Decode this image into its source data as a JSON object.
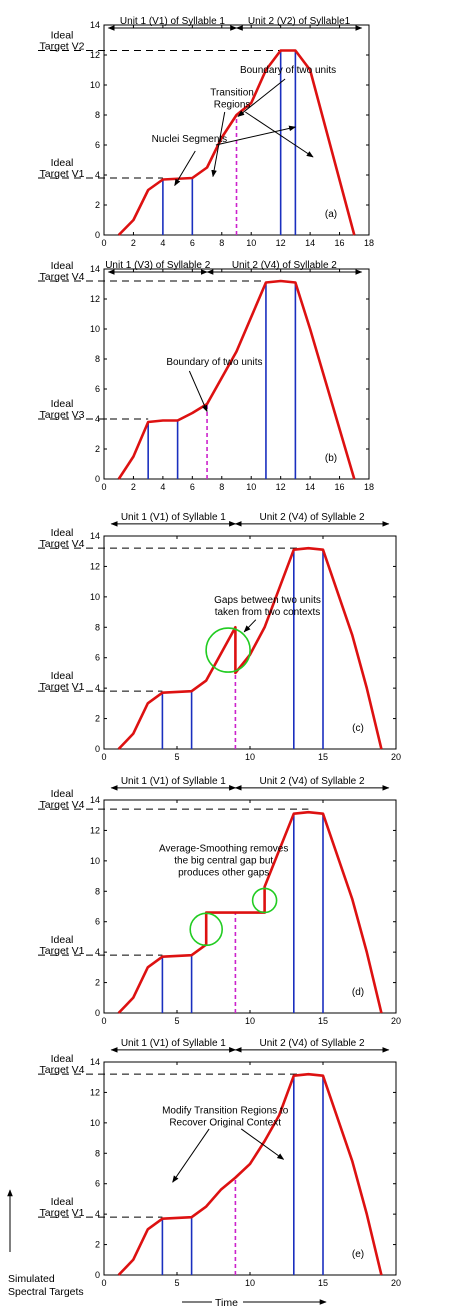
{
  "chart_data": [
    {
      "type": "line",
      "panel_label": "(a)",
      "xlim": [
        0,
        18
      ],
      "ylim": [
        0,
        14
      ],
      "xticks": [
        0,
        2,
        4,
        6,
        8,
        10,
        12,
        14,
        16,
        18
      ],
      "yticks": [
        0,
        2,
        4,
        6,
        8,
        10,
        12,
        14
      ],
      "curve": {
        "x": [
          1,
          2,
          3,
          4,
          6,
          7,
          8,
          9,
          10,
          11,
          12,
          13,
          14,
          17
        ],
        "y": [
          0,
          1,
          3,
          3.7,
          3.8,
          4.5,
          6.5,
          8,
          8.8,
          11,
          12.3,
          12.3,
          11,
          0
        ]
      },
      "boundary_x": 9,
      "boundary_top": 8,
      "nuclei": [
        [
          4,
          3.7
        ],
        [
          6,
          3.8
        ],
        [
          12,
          12.3
        ],
        [
          13,
          12.3
        ]
      ],
      "units": [
        {
          "label": "Unit 1 (V1) of Syllable 1",
          "x0": 0.3,
          "x1": 9
        },
        {
          "label": "Unit 2 (V2) of Syllable1",
          "x0": 9,
          "x1": 17.5
        }
      ],
      "units_y": 13.8,
      "targets": [
        {
          "label_top": "Ideal",
          "label_bottom": "Target V2",
          "value": 12.3,
          "x_end": 12
        },
        {
          "label_top": "Ideal",
          "label_bottom": "Target V1",
          "value": 3.8,
          "x_end": 4
        }
      ],
      "annotations": [
        {
          "lines": [
            "Boundary of two units"
          ],
          "tx": 12.5,
          "ty": 10.8,
          "arrows": [
            [
              12.3,
              10.4,
              9.1,
              7.9
            ]
          ]
        },
        {
          "lines": [
            "Transition",
            "Regions"
          ],
          "tx": 8.7,
          "ty": 9.3,
          "arrows": [
            [
              9.6,
              8.2,
              14.2,
              5.2
            ],
            [
              8.2,
              8.2,
              7.4,
              3.9
            ]
          ]
        },
        {
          "lines": [
            "Nuclei Segments"
          ],
          "tx": 5.8,
          "ty": 6.2,
          "arrows": [
            [
              6.2,
              5.6,
              4.8,
              3.3
            ],
            [
              7.6,
              6.0,
              13.0,
              7.2
            ]
          ]
        }
      ]
    },
    {
      "type": "line",
      "panel_label": "(b)",
      "xlim": [
        0,
        18
      ],
      "ylim": [
        0,
        14
      ],
      "xticks": [
        0,
        2,
        4,
        6,
        8,
        10,
        12,
        14,
        16,
        18
      ],
      "yticks": [
        0,
        2,
        4,
        6,
        8,
        10,
        12,
        14
      ],
      "curve": {
        "x": [
          1,
          2,
          3,
          4,
          5,
          6,
          7,
          9,
          10,
          11,
          12,
          13,
          14,
          17
        ],
        "y": [
          0,
          1.5,
          3.8,
          3.9,
          3.9,
          4.4,
          5,
          8.5,
          10.8,
          13.1,
          13.2,
          13.1,
          10,
          0
        ]
      },
      "boundary_x": 7,
      "boundary_top": 5,
      "nuclei": [
        [
          3,
          3.8
        ],
        [
          5,
          3.9
        ],
        [
          11,
          13.1
        ],
        [
          13,
          13.1
        ]
      ],
      "units": [
        {
          "label": "Unit 1 (V3) of Syllable 2",
          "x0": 0.3,
          "x1": 7
        },
        {
          "label": "Unit 2 (V4) of Syllable 2",
          "x0": 7,
          "x1": 17.5
        }
      ],
      "units_y": 13.8,
      "targets": [
        {
          "label_top": "Ideal",
          "label_bottom": "Target V4",
          "value": 13.2,
          "x_end": 11
        },
        {
          "label_top": "Ideal",
          "label_bottom": "Target V3",
          "value": 4,
          "x_end": 3
        }
      ],
      "annotations": [
        {
          "lines": [
            "Boundary of two units"
          ],
          "tx": 7.5,
          "ty": 7.6,
          "arrows": [
            [
              5.8,
              7.2,
              7.0,
              4.5
            ]
          ]
        }
      ]
    },
    {
      "type": "line",
      "panel_label": "(c)",
      "xlim": [
        0,
        20
      ],
      "ylim": [
        0,
        14
      ],
      "xticks": [
        0,
        5,
        10,
        15,
        20
      ],
      "yticks": [
        0,
        2,
        4,
        6,
        8,
        10,
        12,
        14
      ],
      "curve": {
        "x": [
          1,
          2,
          3,
          4,
          6,
          7,
          9,
          9,
          10,
          11,
          13,
          14,
          15,
          17,
          18,
          19
        ],
        "y": [
          0,
          1,
          3,
          3.7,
          3.8,
          4.5,
          8,
          5,
          6.2,
          8,
          13.1,
          13.2,
          13.1,
          7.5,
          4,
          0
        ]
      },
      "boundary_x": 9,
      "boundary_top": 5,
      "nuclei": [
        [
          4,
          3.7
        ],
        [
          6,
          3.8
        ],
        [
          13,
          13.1
        ],
        [
          15,
          13.1
        ]
      ],
      "units": [
        {
          "label": "Unit 1 (V1) of Syllable 1",
          "x0": 0.5,
          "x1": 9
        },
        {
          "label": "Unit 2 (V4) of Syllable 2",
          "x0": 9,
          "x1": 19.5
        }
      ],
      "units_y": 14.8,
      "targets": [
        {
          "label_top": "Ideal",
          "label_bottom": "Target V4",
          "value": 13.2,
          "x_end": 14
        },
        {
          "label_top": "Ideal",
          "label_bottom": "Target V1",
          "value": 3.8,
          "x_end": 4
        }
      ],
      "circles": [
        {
          "x": 8.5,
          "y": 6.5,
          "r": 22
        }
      ],
      "annotations": [
        {
          "lines": [
            "Gaps between two units",
            "taken from two contexts"
          ],
          "tx": 11.2,
          "ty": 9.6,
          "arrows": [
            [
              10.4,
              8.5,
              9.6,
              7.7
            ]
          ]
        }
      ]
    },
    {
      "type": "line",
      "panel_label": "(d)",
      "xlim": [
        0,
        20
      ],
      "ylim": [
        0,
        14
      ],
      "xticks": [
        0,
        5,
        10,
        15,
        20
      ],
      "yticks": [
        0,
        2,
        4,
        6,
        8,
        10,
        12,
        14
      ],
      "curve": {
        "x": [
          1,
          2,
          3,
          4,
          6,
          7,
          7,
          9,
          11,
          11,
          13,
          14,
          15,
          17,
          18,
          19
        ],
        "y": [
          0,
          1,
          3,
          3.7,
          3.8,
          4.5,
          6.6,
          6.6,
          6.6,
          8.3,
          13.1,
          13.2,
          13.1,
          7.5,
          4,
          0
        ]
      },
      "boundary_x": 9,
      "boundary_top": 6.6,
      "nuclei": [
        [
          4,
          3.7
        ],
        [
          6,
          3.8
        ],
        [
          13,
          13.1
        ],
        [
          15,
          13.1
        ]
      ],
      "units": [
        {
          "label": "Unit 1 (V1) of Syllable 1",
          "x0": 0.5,
          "x1": 9
        },
        {
          "label": "Unit 2 (V4) of Syllable 2",
          "x0": 9,
          "x1": 19.5
        }
      ],
      "units_y": 14.8,
      "targets": [
        {
          "label_top": "Ideal",
          "label_bottom": "Target V4",
          "value": 13.4,
          "x_end": 14
        },
        {
          "label_top": "Ideal",
          "label_bottom": "Target V1",
          "value": 3.8,
          "x_end": 4
        }
      ],
      "circles": [
        {
          "x": 7,
          "y": 5.5,
          "r": 16
        },
        {
          "x": 11,
          "y": 7.4,
          "r": 12
        }
      ],
      "annotations": [
        {
          "lines": [
            "Average-Smoothing removes",
            "the big central gap but",
            "produces other gaps"
          ],
          "tx": 8.2,
          "ty": 10.6,
          "arrows": []
        }
      ]
    },
    {
      "type": "line",
      "panel_label": "(e)",
      "xlim": [
        0,
        20
      ],
      "ylim": [
        0,
        14
      ],
      "xticks": [
        0,
        5,
        10,
        15,
        20
      ],
      "yticks": [
        0,
        2,
        4,
        6,
        8,
        10,
        12,
        14
      ],
      "curve": {
        "x": [
          1,
          2,
          3,
          4,
          6,
          7,
          8,
          9,
          10,
          11,
          12,
          13,
          14,
          15,
          17,
          18,
          19
        ],
        "y": [
          0,
          1,
          3,
          3.7,
          3.8,
          4.5,
          5.6,
          6.4,
          7.3,
          8.8,
          10.5,
          13.1,
          13.2,
          13.1,
          7.5,
          4,
          0
        ]
      },
      "boundary_x": 9,
      "boundary_top": 6.4,
      "nuclei": [
        [
          4,
          3.7
        ],
        [
          6,
          3.8
        ],
        [
          13,
          13.1
        ],
        [
          15,
          13.1
        ]
      ],
      "units": [
        {
          "label": "Unit 1 (V1) of Syllable 1",
          "x0": 0.5,
          "x1": 9
        },
        {
          "label": "Unit 2 (V4) of Syllable 2",
          "x0": 9,
          "x1": 19.5
        }
      ],
      "units_y": 14.8,
      "targets": [
        {
          "label_top": "Ideal",
          "label_bottom": "Target V4",
          "value": 13.2,
          "x_end": 14
        },
        {
          "label_top": "Ideal",
          "label_bottom": "Target V1",
          "value": 3.8,
          "x_end": 4
        }
      ],
      "annotations": [
        {
          "lines": [
            "Modify Transition Regions to",
            "Recover Original Context"
          ],
          "tx": 8.3,
          "ty": 10.6,
          "arrows": [
            [
              7.2,
              9.6,
              4.7,
              6.1
            ],
            [
              9.4,
              9.6,
              12.3,
              7.6
            ]
          ]
        }
      ]
    }
  ],
  "global_labels": {
    "ylabel_line1": "Simulated",
    "ylabel_line2": "Spectral Targets",
    "xlabel": "Time"
  },
  "colors": {
    "curve": "#dd1111",
    "nucleus": "#1a2fbf",
    "boundary": "#cc22cc",
    "circle": "#22cc22",
    "axis": "#000000"
  }
}
